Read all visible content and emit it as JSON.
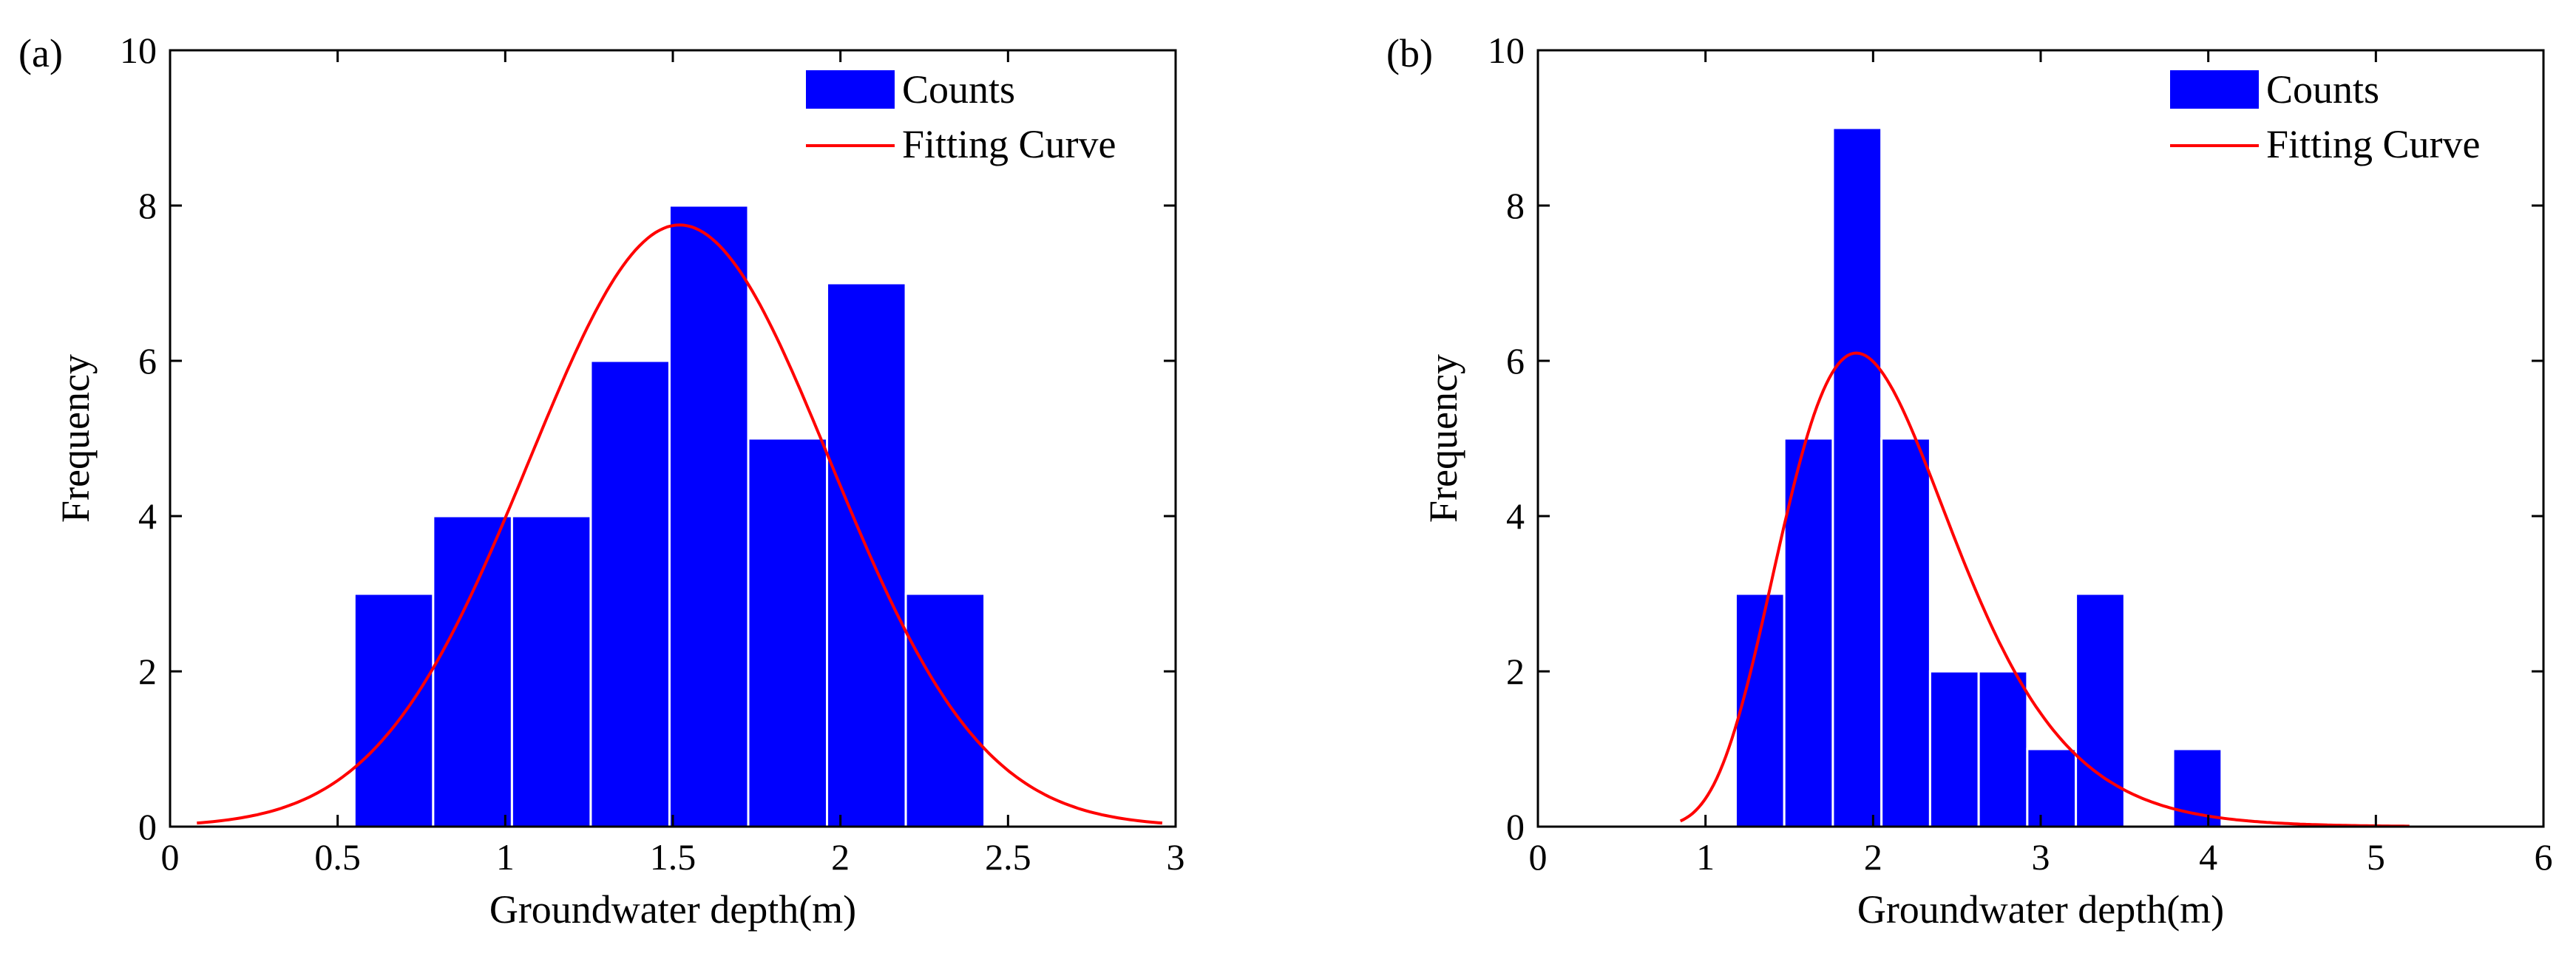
{
  "chart_data": [
    {
      "type": "bar",
      "panel_label": "(a)",
      "xlabel": "Groundwater depth(m)",
      "ylabel": "Frequency",
      "xlim": [
        0,
        3
      ],
      "ylim": [
        0,
        10
      ],
      "xticks": [
        "0",
        "0.5",
        "1",
        "1.5",
        "2",
        "2.5",
        "3"
      ],
      "xtick_values": [
        0,
        0.5,
        1,
        1.5,
        2,
        2.5,
        3
      ],
      "yticks": [
        "0",
        "2",
        "4",
        "6",
        "8",
        "10"
      ],
      "ytick_values": [
        0,
        2,
        4,
        6,
        8,
        10
      ],
      "bins": [
        {
          "start": 0.55,
          "end": 0.785,
          "count": 3
        },
        {
          "start": 0.785,
          "end": 1.02,
          "count": 4
        },
        {
          "start": 1.02,
          "end": 1.255,
          "count": 4
        },
        {
          "start": 1.255,
          "end": 1.49,
          "count": 6
        },
        {
          "start": 1.49,
          "end": 1.725,
          "count": 8
        },
        {
          "start": 1.725,
          "end": 1.96,
          "count": 5
        },
        {
          "start": 1.96,
          "end": 2.195,
          "count": 7
        },
        {
          "start": 2.195,
          "end": 2.43,
          "count": 3
        }
      ],
      "fit": {
        "type": "normal",
        "peak_x": 1.52,
        "peak_y": 7.75,
        "sigma": 0.45,
        "x_range": [
          0.08,
          2.96
        ]
      },
      "legend": {
        "entries": [
          "Counts",
          "Fitting Curve"
        ],
        "position": "top-right"
      },
      "colors": {
        "bars": "#0000ff",
        "curve": "#ff0000"
      }
    },
    {
      "type": "bar",
      "panel_label": "(b)",
      "xlabel": "Groundwater depth(m)",
      "ylabel": "Frequency",
      "xlim": [
        0,
        6
      ],
      "ylim": [
        0,
        10
      ],
      "xticks": [
        "0",
        "1",
        "2",
        "3",
        "4",
        "5",
        "6"
      ],
      "xtick_values": [
        0,
        1,
        2,
        3,
        4,
        5,
        6
      ],
      "yticks": [
        "0",
        "2",
        "4",
        "6",
        "8",
        "10"
      ],
      "ytick_values": [
        0,
        2,
        4,
        6,
        8,
        10
      ],
      "bins": [
        {
          "start": 1.18,
          "end": 1.47,
          "count": 3
        },
        {
          "start": 1.47,
          "end": 1.76,
          "count": 5
        },
        {
          "start": 1.76,
          "end": 2.05,
          "count": 9
        },
        {
          "start": 2.05,
          "end": 2.34,
          "count": 5
        },
        {
          "start": 2.34,
          "end": 2.63,
          "count": 2
        },
        {
          "start": 2.63,
          "end": 2.92,
          "count": 2
        },
        {
          "start": 2.92,
          "end": 3.21,
          "count": 1
        },
        {
          "start": 3.21,
          "end": 3.5,
          "count": 3
        },
        {
          "start": 3.5,
          "end": 3.79,
          "count": 0
        },
        {
          "start": 3.79,
          "end": 4.08,
          "count": 1
        }
      ],
      "fit": {
        "type": "lognormal",
        "peak_x": 1.9,
        "peak_y": 6.1,
        "sigma": 0.27,
        "x_range": [
          0.85,
          5.2
        ]
      },
      "legend": {
        "entries": [
          "Counts",
          "Fitting Curve"
        ],
        "position": "top-right"
      },
      "colors": {
        "bars": "#0000ff",
        "curve": "#ff0000"
      }
    }
  ]
}
